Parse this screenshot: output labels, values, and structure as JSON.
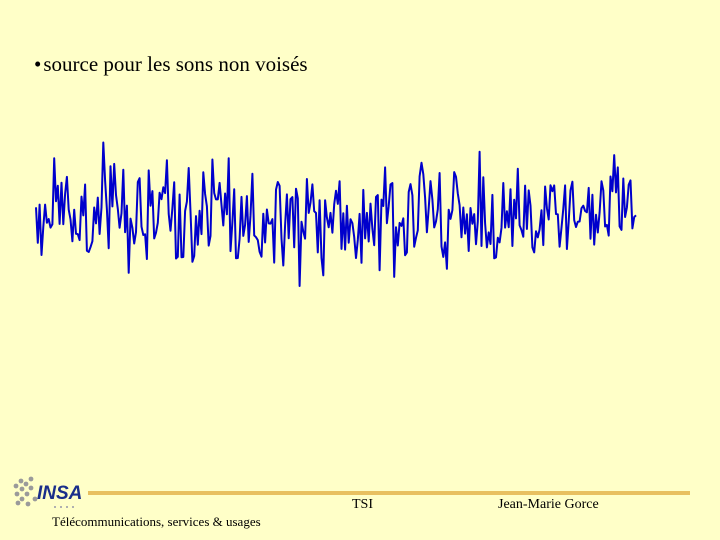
{
  "slide": {
    "bullet_symbol": "•",
    "bullet_text": "source pour les sons non voisés"
  },
  "logo": {
    "text": "INSA"
  },
  "footer": {
    "left": "Télécommunications, services & usages",
    "center": "TSI",
    "right": "Jean-Marie Gorce"
  },
  "colors": {
    "background": "#FFFFC8",
    "waveform": "#0000CC",
    "footer_rule": "#E8C060",
    "logo_blue": "#1A2E8A"
  },
  "icons": {
    "logo": "insa-logo-icon"
  }
}
